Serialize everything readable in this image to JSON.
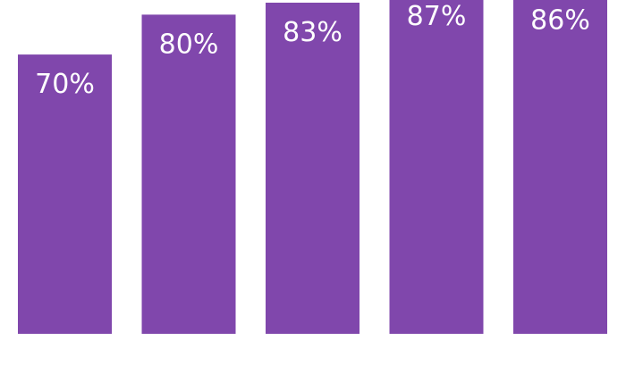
{
  "chart_data": {
    "type": "bar",
    "categories": [
      "",
      "",
      "",
      "",
      ""
    ],
    "values": [
      70,
      80,
      83,
      87,
      86
    ],
    "data_labels": [
      "70%",
      "80%",
      "83%",
      "87%",
      "86%"
    ],
    "ylim": [
      0,
      100
    ],
    "grid": false,
    "legend": "none",
    "bar_color": "#8047AC",
    "label_color": "#FFFFFF"
  }
}
